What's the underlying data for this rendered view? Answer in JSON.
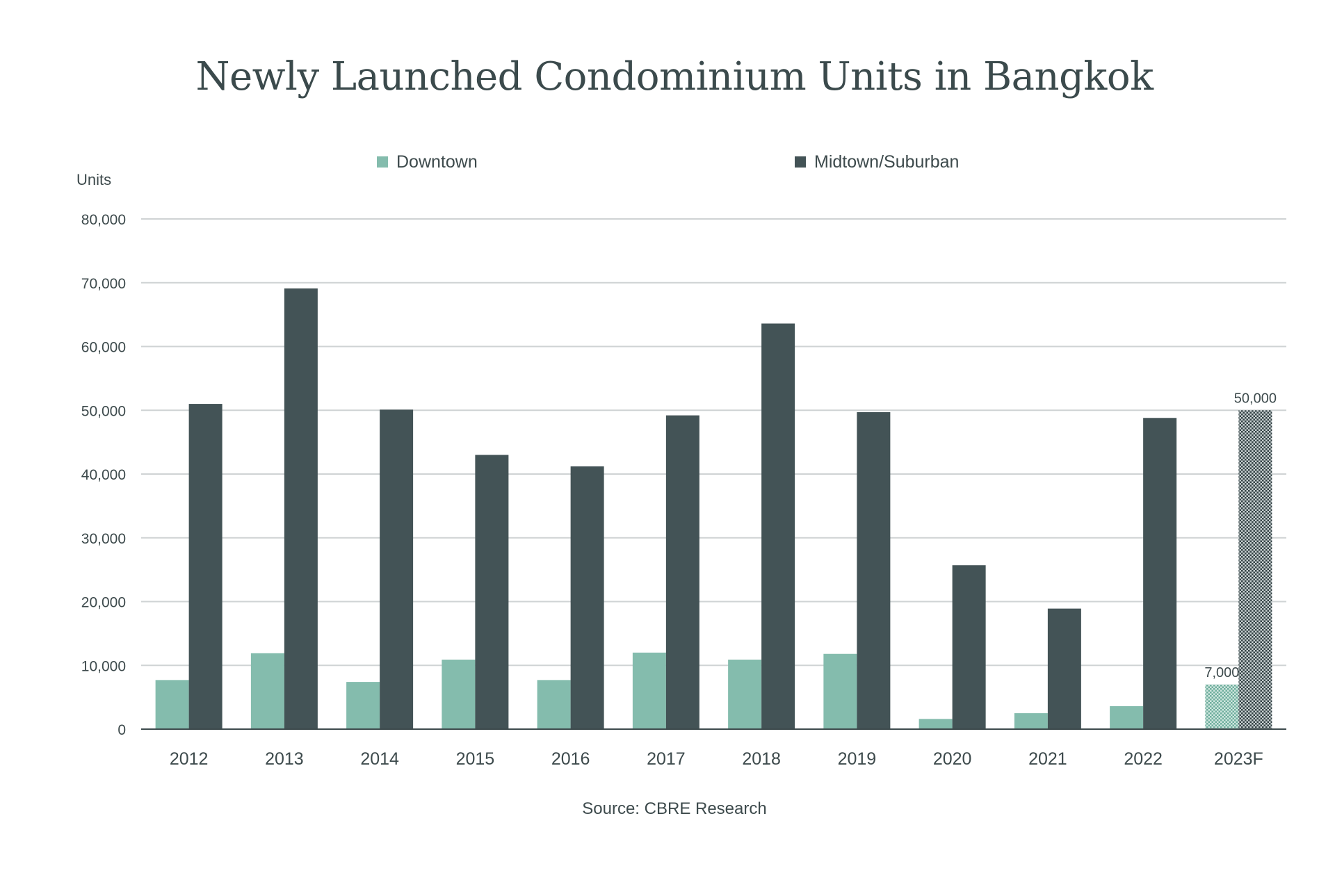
{
  "chart_data": {
    "type": "bar",
    "title": "Newly Launched Condominium Units in Bangkok",
    "ylabel": "Units",
    "xlabel": "",
    "ylim": [
      0,
      80000
    ],
    "yticks": [
      0,
      10000,
      20000,
      30000,
      40000,
      50000,
      60000,
      70000,
      80000
    ],
    "ytick_labels": [
      "0",
      "10,000",
      "20,000",
      "30,000",
      "40,000",
      "50,000",
      "60,000",
      "70,000",
      "80,000"
    ],
    "categories": [
      "2012",
      "2013",
      "2014",
      "2015",
      "2016",
      "2017",
      "2018",
      "2019",
      "2020",
      "2021",
      "2022",
      "2023F"
    ],
    "series": [
      {
        "name": "Downtown",
        "color": "#84bcad",
        "values": [
          7700,
          11900,
          7400,
          10900,
          7700,
          12000,
          10900,
          11800,
          1600,
          2500,
          3600,
          7000
        ]
      },
      {
        "name": "Midtown/Suburban",
        "color": "#435356",
        "values": [
          51000,
          69100,
          50100,
          43000,
          41200,
          49200,
          63600,
          49700,
          25700,
          18900,
          48800,
          50000
        ]
      }
    ],
    "forecast_category": "2023F",
    "data_labels": [
      {
        "category": "2023F",
        "series": "Downtown",
        "text": "7,000"
      },
      {
        "category": "2023F",
        "series": "Midtown/Suburban",
        "text": "50,000"
      }
    ],
    "grid": true,
    "legend_position": "top",
    "source": "Source: CBRE Research"
  }
}
